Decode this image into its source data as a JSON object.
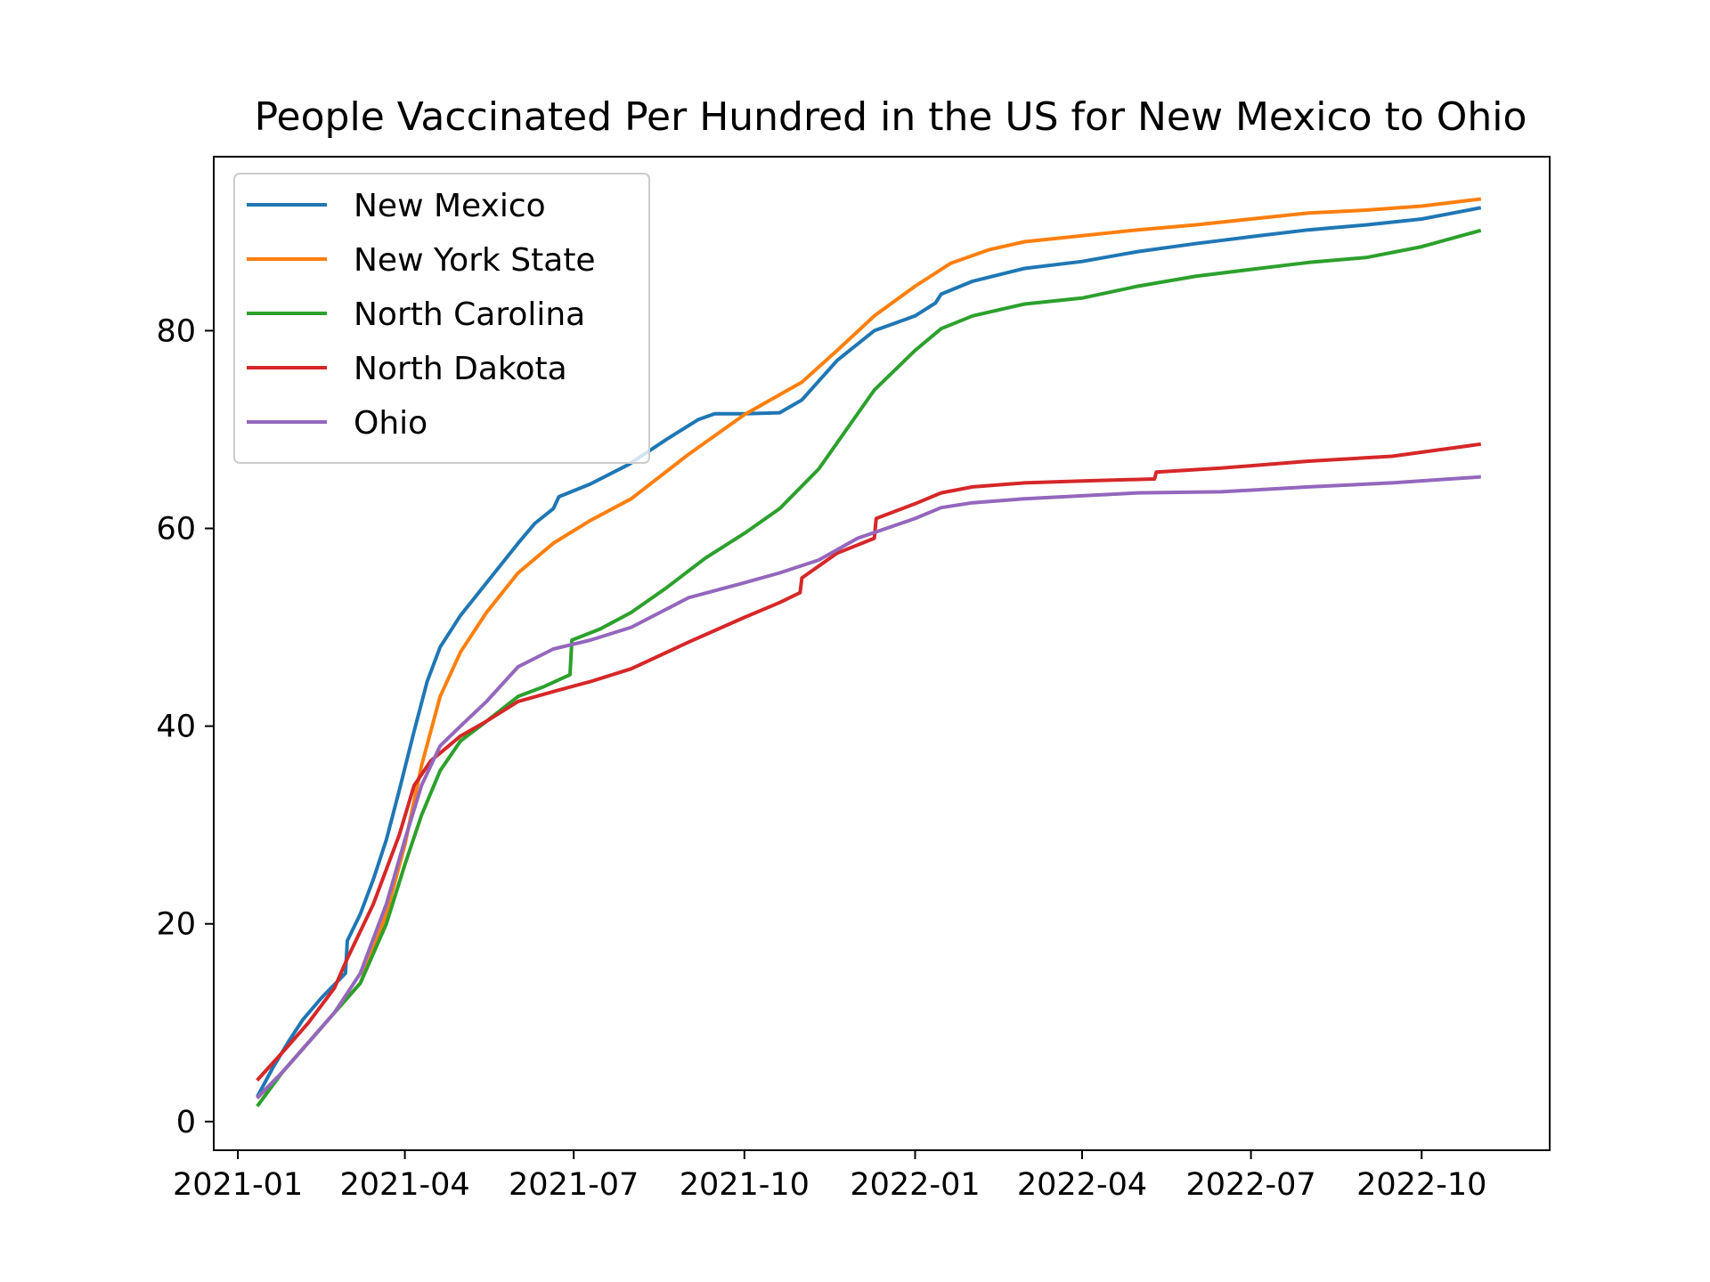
{
  "chart_data": {
    "type": "line",
    "title": "People Vaccinated Per Hundred in the US for New Mexico to Ohio",
    "xlabel": "",
    "ylabel": "",
    "x_ticks": [
      "2021-01",
      "2021-04",
      "2021-07",
      "2021-10",
      "2022-01",
      "2022-04",
      "2022-07",
      "2022-10"
    ],
    "y_ticks": [
      0,
      20,
      40,
      60,
      80
    ],
    "ylim": [
      -2.9,
      97.6
    ],
    "xlim": [
      "2020-12-19",
      "2022-12-09"
    ],
    "grid": false,
    "legend_position": "top-left",
    "series": [
      {
        "name": "New Mexico",
        "color": "#1f77b4",
        "points": [
          [
            "2021-01-12",
            2.7
          ],
          [
            "2021-01-20",
            5.5
          ],
          [
            "2021-01-28",
            8.0
          ],
          [
            "2021-02-05",
            10.3
          ],
          [
            "2021-02-15",
            12.5
          ],
          [
            "2021-02-28",
            15.0
          ],
          [
            "2021-03-01",
            18.3
          ],
          [
            "2021-03-08",
            21.0
          ],
          [
            "2021-03-15",
            24.5
          ],
          [
            "2021-03-22",
            28.5
          ],
          [
            "2021-03-29",
            33.5
          ],
          [
            "2021-04-06",
            39.5
          ],
          [
            "2021-04-13",
            44.5
          ],
          [
            "2021-04-20",
            48.0
          ],
          [
            "2021-05-01",
            51.2
          ],
          [
            "2021-05-15",
            54.5
          ],
          [
            "2021-06-01",
            58.5
          ],
          [
            "2021-06-10",
            60.5
          ],
          [
            "2021-06-20",
            62.0
          ],
          [
            "2021-06-23",
            63.2
          ],
          [
            "2021-07-10",
            64.5
          ],
          [
            "2021-07-31",
            66.5
          ],
          [
            "2021-08-20",
            69.0
          ],
          [
            "2021-09-06",
            71.0
          ],
          [
            "2021-09-15",
            71.6
          ],
          [
            "2021-10-01",
            71.6
          ],
          [
            "2021-10-20",
            71.7
          ],
          [
            "2021-11-01",
            73.0
          ],
          [
            "2021-11-20",
            77.0
          ],
          [
            "2021-12-10",
            80.0
          ],
          [
            "2022-01-01",
            81.5
          ],
          [
            "2022-01-12",
            82.8
          ],
          [
            "2022-01-15",
            83.7
          ],
          [
            "2022-02-01",
            85.0
          ],
          [
            "2022-03-01",
            86.3
          ],
          [
            "2022-04-01",
            87.0
          ],
          [
            "2022-05-01",
            88.0
          ],
          [
            "2022-06-01",
            88.8
          ],
          [
            "2022-07-01",
            89.5
          ],
          [
            "2022-08-01",
            90.2
          ],
          [
            "2022-09-01",
            90.7
          ],
          [
            "2022-10-01",
            91.3
          ],
          [
            "2022-11-01",
            92.4
          ]
        ]
      },
      {
        "name": "New York State",
        "color": "#ff7f0e",
        "points": [
          [
            "2021-01-12",
            2.5
          ],
          [
            "2021-01-25",
            5.0
          ],
          [
            "2021-02-08",
            8.0
          ],
          [
            "2021-02-22",
            11.0
          ],
          [
            "2021-03-08",
            14.0
          ],
          [
            "2021-03-22",
            21.0
          ],
          [
            "2021-04-01",
            28.0
          ],
          [
            "2021-04-10",
            36.0
          ],
          [
            "2021-04-20",
            43.0
          ],
          [
            "2021-05-01",
            47.5
          ],
          [
            "2021-05-15",
            51.5
          ],
          [
            "2021-06-01",
            55.5
          ],
          [
            "2021-06-20",
            58.5
          ],
          [
            "2021-07-10",
            60.8
          ],
          [
            "2021-08-01",
            63.0
          ],
          [
            "2021-09-01",
            67.5
          ],
          [
            "2021-10-01",
            71.5
          ],
          [
            "2021-10-15",
            73.0
          ],
          [
            "2021-11-01",
            74.8
          ],
          [
            "2021-11-20",
            78.0
          ],
          [
            "2021-12-10",
            81.5
          ],
          [
            "2022-01-01",
            84.5
          ],
          [
            "2022-01-20",
            86.8
          ],
          [
            "2022-02-10",
            88.2
          ],
          [
            "2022-03-01",
            89.0
          ],
          [
            "2022-04-01",
            89.6
          ],
          [
            "2022-05-01",
            90.2
          ],
          [
            "2022-06-01",
            90.7
          ],
          [
            "2022-07-01",
            91.3
          ],
          [
            "2022-08-01",
            91.9
          ],
          [
            "2022-09-01",
            92.2
          ],
          [
            "2022-10-01",
            92.6
          ],
          [
            "2022-11-01",
            93.3
          ]
        ]
      },
      {
        "name": "North Carolina",
        "color": "#2ca02c",
        "points": [
          [
            "2021-01-12",
            1.7
          ],
          [
            "2021-01-25",
            5.0
          ],
          [
            "2021-02-08",
            8.0
          ],
          [
            "2021-02-22",
            11.0
          ],
          [
            "2021-03-08",
            14.0
          ],
          [
            "2021-03-22",
            20.0
          ],
          [
            "2021-04-01",
            26.0
          ],
          [
            "2021-04-10",
            31.0
          ],
          [
            "2021-04-20",
            35.5
          ],
          [
            "2021-05-01",
            38.5
          ],
          [
            "2021-05-15",
            40.5
          ],
          [
            "2021-06-01",
            43.0
          ],
          [
            "2021-06-15",
            44.0
          ],
          [
            "2021-06-29",
            45.2
          ],
          [
            "2021-06-30",
            48.7
          ],
          [
            "2021-07-15",
            49.8
          ],
          [
            "2021-08-01",
            51.5
          ],
          [
            "2021-08-20",
            54.0
          ],
          [
            "2021-09-10",
            57.0
          ],
          [
            "2021-10-01",
            59.5
          ],
          [
            "2021-10-20",
            62.0
          ],
          [
            "2021-11-10",
            66.0
          ],
          [
            "2021-11-25",
            70.0
          ],
          [
            "2021-12-10",
            74.0
          ],
          [
            "2022-01-01",
            78.0
          ],
          [
            "2022-01-15",
            80.2
          ],
          [
            "2022-02-01",
            81.5
          ],
          [
            "2022-03-01",
            82.7
          ],
          [
            "2022-04-01",
            83.3
          ],
          [
            "2022-05-01",
            84.5
          ],
          [
            "2022-06-01",
            85.5
          ],
          [
            "2022-07-01",
            86.2
          ],
          [
            "2022-08-01",
            86.9
          ],
          [
            "2022-09-01",
            87.4
          ],
          [
            "2022-10-01",
            88.5
          ],
          [
            "2022-11-01",
            90.1
          ]
        ]
      },
      {
        "name": "North Dakota",
        "color": "#d62728",
        "points": [
          [
            "2021-01-12",
            4.3
          ],
          [
            "2021-01-25",
            7.0
          ],
          [
            "2021-02-08",
            10.0
          ],
          [
            "2021-02-22",
            13.5
          ],
          [
            "2021-03-01",
            16.5
          ],
          [
            "2021-03-15",
            22.0
          ],
          [
            "2021-03-29",
            29.0
          ],
          [
            "2021-04-06",
            34.0
          ],
          [
            "2021-04-15",
            36.5
          ],
          [
            "2021-05-01",
            39.0
          ],
          [
            "2021-05-15",
            40.5
          ],
          [
            "2021-06-01",
            42.5
          ],
          [
            "2021-06-20",
            43.5
          ],
          [
            "2021-07-10",
            44.5
          ],
          [
            "2021-08-01",
            45.8
          ],
          [
            "2021-09-01",
            48.5
          ],
          [
            "2021-10-01",
            51.0
          ],
          [
            "2021-10-20",
            52.5
          ],
          [
            "2021-10-31",
            53.5
          ],
          [
            "2021-11-01",
            55.0
          ],
          [
            "2021-11-20",
            57.5
          ],
          [
            "2021-12-10",
            59.0
          ],
          [
            "2021-12-11",
            61.0
          ],
          [
            "2022-01-01",
            62.5
          ],
          [
            "2022-01-15",
            63.6
          ],
          [
            "2022-02-01",
            64.2
          ],
          [
            "2022-03-01",
            64.6
          ],
          [
            "2022-04-01",
            64.8
          ],
          [
            "2022-05-10",
            65.0
          ],
          [
            "2022-05-11",
            65.7
          ],
          [
            "2022-06-15",
            66.1
          ],
          [
            "2022-08-01",
            66.8
          ],
          [
            "2022-09-15",
            67.3
          ],
          [
            "2022-11-01",
            68.5
          ]
        ]
      },
      {
        "name": "Ohio",
        "color": "#9467bd",
        "points": [
          [
            "2021-01-12",
            2.5
          ],
          [
            "2021-01-25",
            5.0
          ],
          [
            "2021-02-08",
            8.0
          ],
          [
            "2021-02-22",
            11.0
          ],
          [
            "2021-03-08",
            15.0
          ],
          [
            "2021-03-22",
            22.0
          ],
          [
            "2021-04-01",
            28.5
          ],
          [
            "2021-04-10",
            34.0
          ],
          [
            "2021-04-20",
            38.0
          ],
          [
            "2021-05-01",
            40.0
          ],
          [
            "2021-05-15",
            42.5
          ],
          [
            "2021-06-01",
            46.0
          ],
          [
            "2021-06-20",
            47.8
          ],
          [
            "2021-07-10",
            48.7
          ],
          [
            "2021-08-01",
            50.0
          ],
          [
            "2021-09-01",
            53.0
          ],
          [
            "2021-10-01",
            54.5
          ],
          [
            "2021-10-20",
            55.5
          ],
          [
            "2021-11-10",
            56.8
          ],
          [
            "2021-12-01",
            59.0
          ],
          [
            "2022-01-01",
            61.0
          ],
          [
            "2022-01-15",
            62.1
          ],
          [
            "2022-02-01",
            62.6
          ],
          [
            "2022-03-01",
            63.0
          ],
          [
            "2022-04-01",
            63.3
          ],
          [
            "2022-05-01",
            63.6
          ],
          [
            "2022-06-15",
            63.7
          ],
          [
            "2022-08-01",
            64.2
          ],
          [
            "2022-09-15",
            64.6
          ],
          [
            "2022-11-01",
            65.2
          ]
        ]
      }
    ]
  }
}
